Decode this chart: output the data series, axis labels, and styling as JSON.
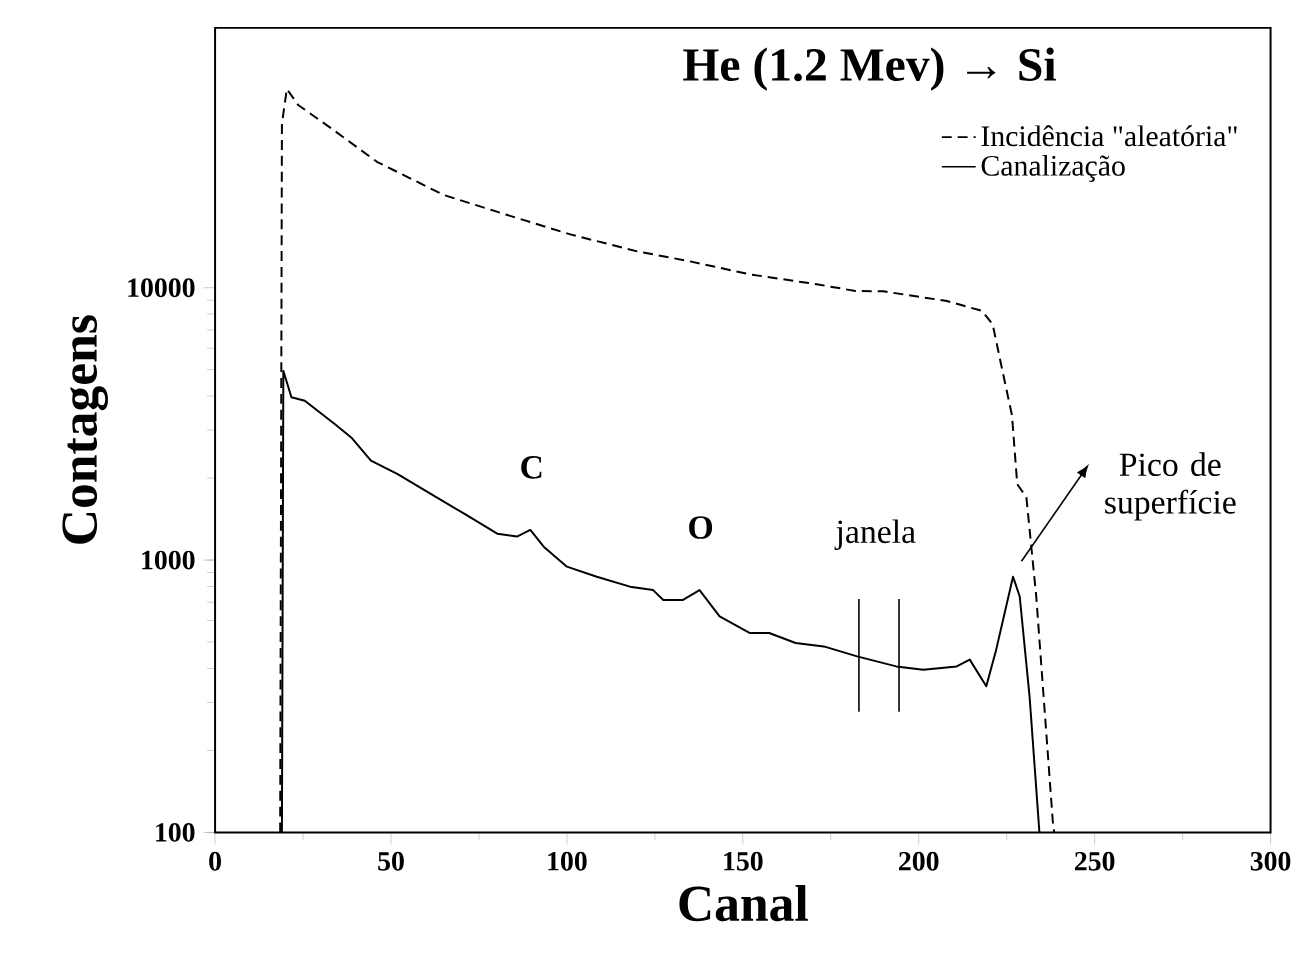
{
  "chart_data": {
    "type": "line",
    "title": "He (1.2 Mev) → Si",
    "xlabel": "Canal",
    "ylabel": "Contagens",
    "xlim": [
      0,
      300
    ],
    "xticks": [
      0,
      50,
      100,
      150,
      200,
      250,
      300
    ],
    "ylim": [
      100,
      90000
    ],
    "yticks": [
      100,
      1000,
      10000
    ],
    "log": "y",
    "legend": "top right",
    "series": [
      {
        "name": "Incidência \"aleatória\"",
        "color": "#000000",
        "line_style": "dashed",
        "x": [
          18.5,
          19,
          20.4,
          23.6,
          33,
          46,
          65,
          86,
          101,
          120,
          135,
          152,
          171,
          182,
          190,
          208,
          218,
          221,
          223.4,
          226.5,
          228,
          230.6,
          233.4,
          238.1,
          238.5
        ],
        "values": [
          100,
          40000,
          53700,
          46900,
          38500,
          29000,
          21900,
          18000,
          15700,
          13600,
          12500,
          11200,
          10300,
          9730,
          9700,
          8940,
          8220,
          7350,
          5240,
          3400,
          1900,
          1700,
          735,
          110,
          100
        ]
      },
      {
        "name": "Canalização",
        "color": "#000000",
        "line_style": "solid",
        "x": [
          19,
          19.4,
          21.7,
          25.5,
          34,
          38.7,
          44.3,
          51.9,
          61.3,
          70.8,
          80.2,
          85.8,
          89.6,
          93.4,
          100,
          108.5,
          117.9,
          124.5,
          127.4,
          133,
          137.7,
          143.4,
          151.9,
          157.5,
          165,
          173,
          182.5,
          193.6,
          201.3,
          210.8,
          214.5,
          219.2,
          222,
          226.8,
          228.7,
          231.5,
          234.3
        ],
        "values": [
          100,
          4960,
          3960,
          3850,
          3160,
          2820,
          2320,
          2070,
          1750,
          1480,
          1250,
          1220,
          1290,
          1120,
          946,
          869,
          799,
          776,
          714,
          714,
          776,
          621,
          540,
          540,
          496,
          482,
          443,
          407,
          396,
          407,
          431,
          344,
          468,
          869,
          735,
          316,
          100
        ]
      }
    ],
    "annotations": [
      {
        "text": "C",
        "x": 90,
        "y": 1290
      },
      {
        "text": "O",
        "x": 138,
        "y": 776
      },
      "janela",
      "Pico de superfície"
    ]
  }
}
